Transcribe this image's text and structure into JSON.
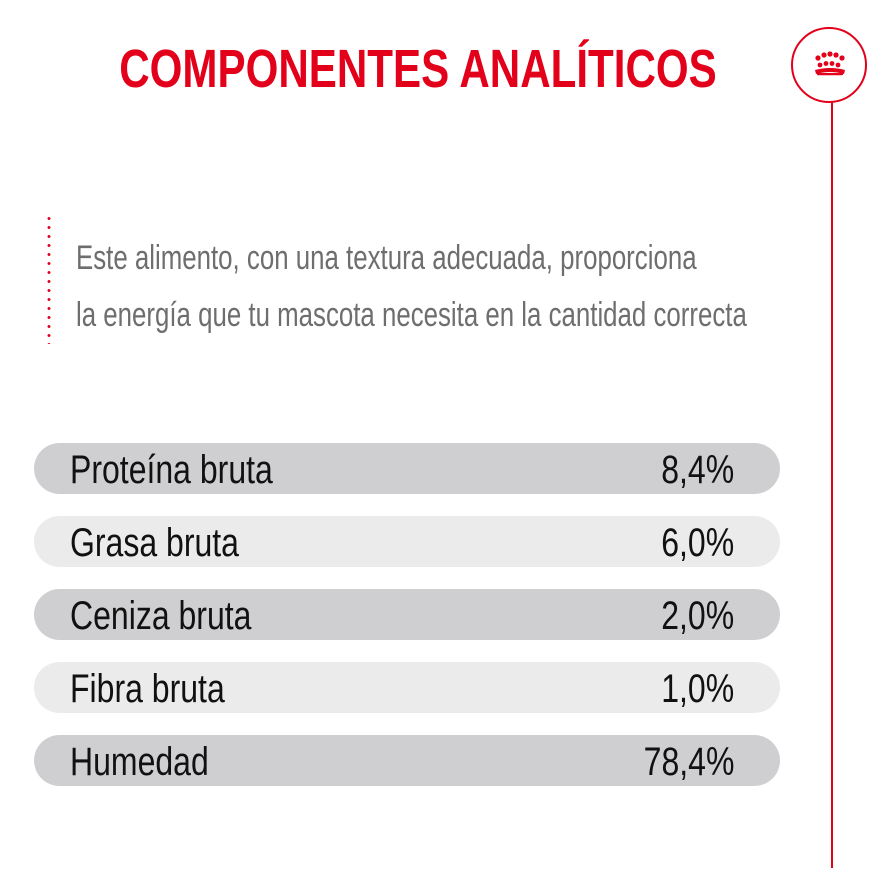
{
  "header": {
    "title": "COMPONENTES ANALÍTICOS",
    "logo_icon": "crown-logo-icon"
  },
  "description": {
    "line1": "Este alimento, con una textura adecuada, proporciona",
    "line2": "la energía que tu mascota necesita en la cantidad correcta"
  },
  "colors": {
    "accent": "#e2001a",
    "row_dark": "#cfcfd1",
    "row_light": "#ebebec",
    "text_gray": "#6e6e6e"
  },
  "components": [
    {
      "name": "Proteína bruta",
      "value": "8,4%"
    },
    {
      "name": "Grasa bruta",
      "value": "6,0%"
    },
    {
      "name": "Ceniza bruta",
      "value": "2,0%"
    },
    {
      "name": "Fibra bruta",
      "value": "1,0%"
    },
    {
      "name": "Humedad",
      "value": "78,4%"
    }
  ]
}
